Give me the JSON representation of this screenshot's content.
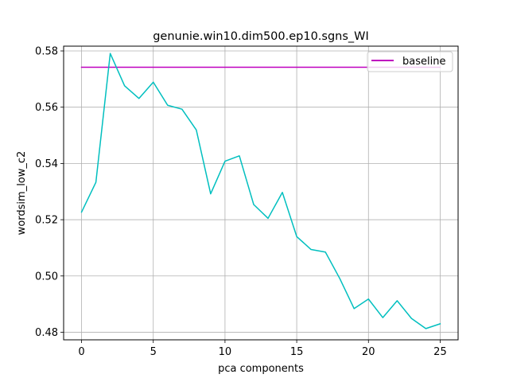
{
  "chart_data": {
    "type": "line",
    "title": "genunie.win10.dim500.ep10.sgns_WI",
    "xlabel": "pca components",
    "ylabel": "wordsim_low_c2",
    "xlim": [
      -1.25,
      26.25
    ],
    "ylim": [
      0.4773,
      0.5817
    ],
    "xticks": [
      0,
      5,
      10,
      15,
      20,
      25
    ],
    "yticks": [
      0.48,
      0.5,
      0.52,
      0.54,
      0.56,
      0.58
    ],
    "ytick_labels": [
      "0.48",
      "0.50",
      "0.52",
      "0.54",
      "0.56",
      "0.58"
    ],
    "grid": true,
    "legend": {
      "position": "top-right"
    },
    "series": [
      {
        "name": "",
        "color": "#00bfbf",
        "x": [
          0,
          1,
          2,
          3,
          4,
          5,
          6,
          7,
          8,
          9,
          10,
          11,
          12,
          13,
          14,
          15,
          16,
          17,
          18,
          19,
          20,
          21,
          22,
          23,
          24,
          25
        ],
        "values": [
          0.5227,
          0.5333,
          0.5791,
          0.5676,
          0.5631,
          0.5689,
          0.5607,
          0.5593,
          0.5519,
          0.5292,
          0.5408,
          0.5427,
          0.5254,
          0.5205,
          0.5297,
          0.514,
          0.5094,
          0.5085,
          0.4991,
          0.4884,
          0.4918,
          0.4852,
          0.4912,
          0.4849,
          0.4813,
          0.483
        ]
      },
      {
        "name": "baseline",
        "color": "#bf00bf",
        "x": [
          0,
          25
        ],
        "values": [
          0.5742,
          0.5742
        ]
      }
    ]
  }
}
